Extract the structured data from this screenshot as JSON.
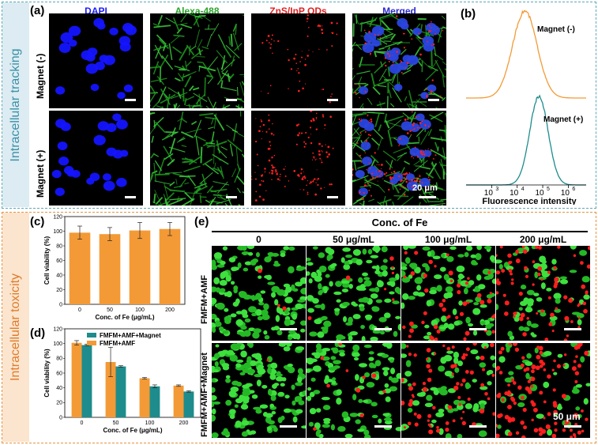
{
  "panel_a": {
    "label": "(a)",
    "columns": [
      "DAPI",
      "Alexa-488",
      "ZnS/InP QDs",
      "Merged"
    ],
    "column_colors": [
      "#1a1aff",
      "#2aa52a",
      "#e02020",
      "#2a2ad0"
    ],
    "rows": [
      "Magnet (-)",
      "Magnet (+)"
    ],
    "scale_text": "20 μm"
  },
  "panel_b": {
    "label": "(b)",
    "curve_labels": [
      "Magnet (-)",
      "Magnet (+)"
    ],
    "curve_colors": [
      "#f39a36",
      "#1e8c8c"
    ],
    "xlabel": "Fluorescence intensity",
    "x_ticks": [
      "10",
      "10",
      "10",
      "10",
      "10"
    ],
    "x_exps": [
      "3",
      "4",
      "5",
      "6",
      ""
    ]
  },
  "sections": {
    "top": "Intracellular tracking",
    "bottom": "Intracellular toxicity"
  },
  "panel_c": {
    "label": "(c)"
  },
  "panel_d": {
    "label": "(d)"
  },
  "panel_e": {
    "label": "(e)",
    "title": "Conc. of Fe",
    "columns": [
      "0",
      "50 μg/mL",
      "100 μg/mL",
      "200 μg/mL"
    ],
    "rows": [
      "FMFM+AMF",
      "FMFM+AMF+Magnet"
    ],
    "scale_text": "50 μm"
  },
  "chart_data": [
    {
      "id": "c",
      "type": "bar",
      "categories": [
        "0",
        "50",
        "100",
        "200"
      ],
      "values": [
        98,
        96,
        101,
        103
      ],
      "errors": [
        9,
        9,
        11,
        9
      ],
      "xlabel": "Conc. of Fe (μg/mL)",
      "ylabel": "Cell viability (%)",
      "ylim": [
        0,
        120
      ],
      "yticks": [
        0,
        20,
        40,
        60,
        80,
        100,
        120
      ],
      "color": "#f39a36"
    },
    {
      "id": "d",
      "type": "bar",
      "categories": [
        "0",
        "50",
        "100",
        "200"
      ],
      "series": [
        {
          "name": "FMFM+AMF",
          "values": [
            101,
            75,
            53,
            43
          ],
          "errors": [
            3,
            20,
            1,
            1
          ],
          "color": "#f39a36"
        },
        {
          "name": "FMFM+AMF+Magnet",
          "values": [
            98,
            69,
            42,
            35
          ],
          "errors": [
            1,
            1,
            2,
            1
          ],
          "color": "#1e8c8c"
        }
      ],
      "xlabel": "Conc. of Fe (μg/mL)",
      "ylabel": "Cell viability (%)",
      "ylim": [
        0,
        120
      ],
      "yticks": [
        0,
        20,
        40,
        60,
        80,
        100,
        120
      ],
      "legend": "top-right"
    },
    {
      "id": "b",
      "type": "line",
      "xscale": "log",
      "xlim": [
        100,
        5000000
      ],
      "series": [
        {
          "name": "Magnet (-)",
          "peak_log10": 4.3,
          "width": 0.48,
          "color": "#f39a36"
        },
        {
          "name": "Magnet (+)",
          "peak_log10": 4.85,
          "width": 0.36,
          "color": "#1e8c8c"
        }
      ]
    }
  ]
}
